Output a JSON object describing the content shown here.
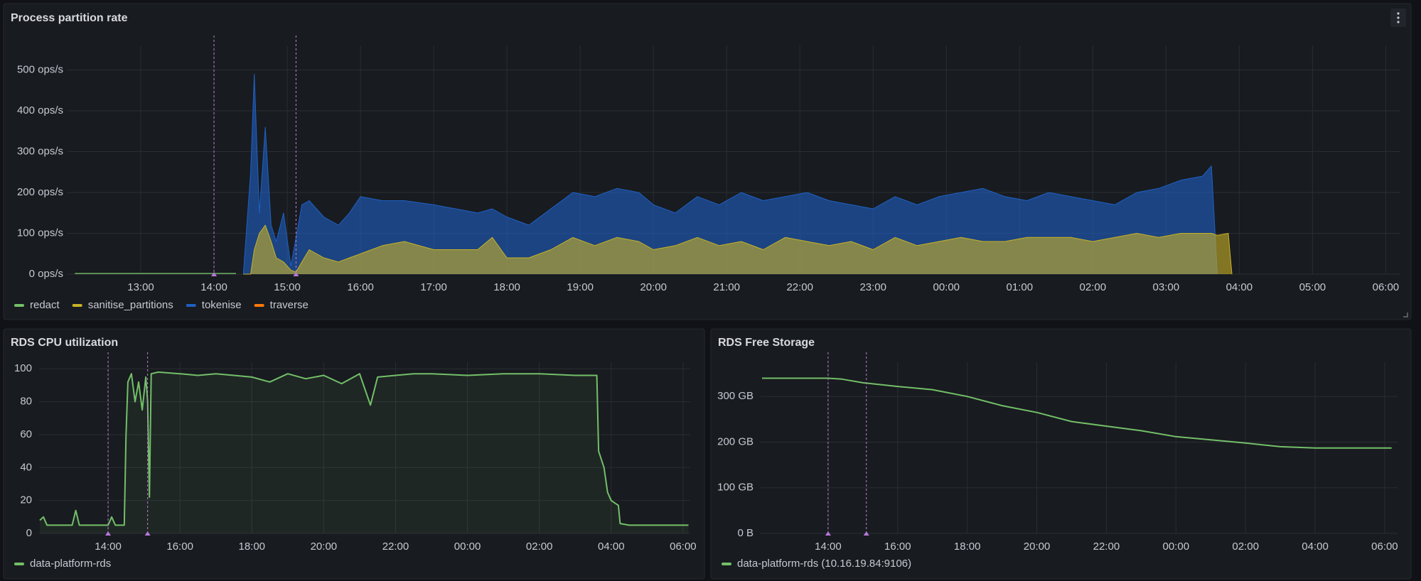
{
  "chart_data": [
    {
      "type": "area",
      "title": "Process partition rate",
      "fill": true,
      "x": [
        12.1,
        13.0,
        13.2,
        14.3,
        14.4,
        14.5,
        14.55,
        14.62,
        14.7,
        14.78,
        14.85,
        14.95,
        15.05,
        15.12,
        15.2,
        15.3,
        15.5,
        15.7,
        15.85,
        16.0,
        16.3,
        16.6,
        17.0,
        17.3,
        17.6,
        17.8,
        18.0,
        18.3,
        18.6,
        18.9,
        19.2,
        19.5,
        19.8,
        20.0,
        20.3,
        20.6,
        20.9,
        21.2,
        21.5,
        21.8,
        22.1,
        22.4,
        22.7,
        23.0,
        23.3,
        23.6,
        23.9,
        24.2,
        24.5,
        24.8,
        25.1,
        25.4,
        25.7,
        26.0,
        26.3,
        26.6,
        26.9,
        27.2,
        27.5,
        27.62,
        27.7,
        27.85,
        27.9
      ],
      "series": [
        {
          "name": "redact",
          "color": "#73bf69",
          "values": [
            2,
            2,
            2,
            2,
            null,
            null,
            null,
            null,
            null,
            null,
            null,
            null,
            null,
            null,
            null,
            null,
            null,
            null,
            null,
            null,
            null,
            null,
            null,
            null,
            null,
            null,
            null,
            null,
            null,
            null,
            null,
            null,
            null,
            null,
            null,
            null,
            null,
            null,
            null,
            null,
            null,
            null,
            null,
            null,
            null,
            null,
            null,
            null,
            null,
            null,
            null,
            null,
            null,
            null,
            null,
            null,
            null,
            null,
            null,
            null,
            null,
            null,
            null
          ]
        },
        {
          "name": "sanitise_partitions",
          "color": "#c9b227",
          "values": [
            null,
            null,
            null,
            null,
            0,
            0,
            60,
            100,
            120,
            80,
            40,
            30,
            10,
            5,
            30,
            60,
            40,
            30,
            40,
            50,
            70,
            80,
            60,
            60,
            60,
            90,
            40,
            40,
            60,
            90,
            70,
            90,
            80,
            60,
            70,
            90,
            70,
            80,
            60,
            90,
            80,
            70,
            80,
            60,
            90,
            70,
            80,
            90,
            80,
            80,
            90,
            90,
            90,
            80,
            90,
            100,
            90,
            100,
            100,
            100,
            95,
            100,
            0
          ]
        },
        {
          "name": "tokenise",
          "color": "#1f60c4",
          "values": [
            null,
            null,
            null,
            null,
            0,
            250,
            490,
            150,
            360,
            120,
            80,
            150,
            20,
            90,
            170,
            180,
            140,
            120,
            150,
            190,
            180,
            180,
            170,
            160,
            150,
            160,
            140,
            120,
            160,
            200,
            190,
            210,
            200,
            170,
            150,
            190,
            170,
            200,
            180,
            190,
            200,
            180,
            170,
            160,
            190,
            170,
            190,
            200,
            210,
            190,
            180,
            200,
            190,
            180,
            170,
            200,
            210,
            230,
            240,
            265,
            0,
            null,
            null
          ]
        },
        {
          "name": "traverse",
          "color": "#ff780a",
          "values": [
            null,
            null,
            null,
            null,
            0,
            null,
            null,
            null,
            null,
            null,
            null,
            null,
            null,
            null,
            null,
            null,
            null,
            null,
            null,
            null,
            null,
            null,
            null,
            null,
            null,
            null,
            null,
            null,
            null,
            null,
            null,
            null,
            null,
            null,
            null,
            null,
            null,
            null,
            null,
            null,
            null,
            null,
            null,
            null,
            null,
            null,
            null,
            null,
            null,
            null,
            null,
            null,
            null,
            null,
            null,
            null,
            null,
            null,
            null,
            null,
            null,
            null,
            null
          ]
        }
      ],
      "xlim": [
        12.0,
        30.2
      ],
      "xticks": [
        {
          "value": 13,
          "label": "13:00"
        },
        {
          "value": 14,
          "label": "14:00"
        },
        {
          "value": 15,
          "label": "15:00"
        },
        {
          "value": 16,
          "label": "16:00"
        },
        {
          "value": 17,
          "label": "17:00"
        },
        {
          "value": 18,
          "label": "18:00"
        },
        {
          "value": 19,
          "label": "19:00"
        },
        {
          "value": 20,
          "label": "20:00"
        },
        {
          "value": 21,
          "label": "21:00"
        },
        {
          "value": 22,
          "label": "22:00"
        },
        {
          "value": 23,
          "label": "23:00"
        },
        {
          "value": 24,
          "label": "00:00"
        },
        {
          "value": 25,
          "label": "01:00"
        },
        {
          "value": 26,
          "label": "02:00"
        },
        {
          "value": 27,
          "label": "03:00"
        },
        {
          "value": 28,
          "label": "04:00"
        },
        {
          "value": 29,
          "label": "05:00"
        },
        {
          "value": 30,
          "label": "06:00"
        }
      ],
      "ylim": [
        0,
        560
      ],
      "yticks": [
        {
          "value": 0,
          "label": "0 ops/s"
        },
        {
          "value": 100,
          "label": "100 ops/s"
        },
        {
          "value": 200,
          "label": "200 ops/s"
        },
        {
          "value": 300,
          "label": "300 ops/s"
        },
        {
          "value": 400,
          "label": "400 ops/s"
        },
        {
          "value": 500,
          "label": "500 ops/s"
        }
      ],
      "annotations": [
        14.0,
        15.12
      ]
    },
    {
      "type": "line",
      "title": "RDS CPU utilization",
      "fill": true,
      "x": [
        12.1,
        12.2,
        12.3,
        12.6,
        13.0,
        13.1,
        13.2,
        13.6,
        14.0,
        14.1,
        14.2,
        14.45,
        14.5,
        14.55,
        14.65,
        14.75,
        14.85,
        14.95,
        15.05,
        15.1,
        15.15,
        15.2,
        15.4,
        16.0,
        16.5,
        17.0,
        17.5,
        18.0,
        18.5,
        19.0,
        19.5,
        20.0,
        20.5,
        21.0,
        21.3,
        21.5,
        22.0,
        22.5,
        23.0,
        24.0,
        25.0,
        26.0,
        27.0,
        27.6,
        27.65,
        27.8,
        27.9,
        28.0,
        28.2,
        28.25,
        28.5,
        29.0,
        30.0,
        30.15
      ],
      "series": [
        {
          "name": "data-platform-rds",
          "color": "#73bf69",
          "values": [
            8,
            10,
            5,
            5,
            5,
            14,
            5,
            5,
            5,
            10,
            5,
            5,
            60,
            92,
            97,
            80,
            92,
            75,
            95,
            80,
            22,
            97,
            98,
            97,
            96,
            97,
            96,
            95,
            92,
            97,
            94,
            96,
            91,
            97,
            78,
            95,
            96,
            97,
            97,
            96,
            97,
            97,
            96,
            96,
            50,
            40,
            25,
            20,
            17,
            6,
            5,
            5,
            5,
            5
          ]
        }
      ],
      "xlim": [
        12.08,
        30.2
      ],
      "xticks": [
        {
          "value": 14,
          "label": "14:00"
        },
        {
          "value": 16,
          "label": "16:00"
        },
        {
          "value": 18,
          "label": "18:00"
        },
        {
          "value": 20,
          "label": "20:00"
        },
        {
          "value": 22,
          "label": "22:00"
        },
        {
          "value": 24,
          "label": "00:00"
        },
        {
          "value": 26,
          "label": "02:00"
        },
        {
          "value": 28,
          "label": "04:00"
        },
        {
          "value": 30,
          "label": "06:00"
        }
      ],
      "ylim": [
        0,
        104
      ],
      "yticks": [
        0,
        20,
        40,
        60,
        80,
        100
      ],
      "annotations": [
        14.0,
        15.1
      ]
    },
    {
      "type": "line",
      "title": "RDS Free Storage",
      "fill": false,
      "x": [
        12.1,
        13.0,
        14.0,
        14.4,
        15.0,
        16.0,
        17.0,
        18.0,
        19.0,
        20.0,
        21.0,
        22.0,
        23.0,
        24.0,
        25.0,
        26.0,
        27.0,
        28.0,
        29.0,
        30.2
      ],
      "series": [
        {
          "name": "data-platform-rds (10.16.19.84:9106)",
          "color": "#73bf69",
          "values": [
            340,
            340,
            340,
            338,
            330,
            322,
            315,
            300,
            280,
            265,
            245,
            235,
            225,
            212,
            205,
            198,
            190,
            187,
            187,
            187
          ]
        }
      ],
      "xlim": [
        12.06,
        30.37
      ],
      "xticks": [
        {
          "value": 14,
          "label": "14:00"
        },
        {
          "value": 16,
          "label": "16:00"
        },
        {
          "value": 18,
          "label": "18:00"
        },
        {
          "value": 20,
          "label": "20:00"
        },
        {
          "value": 22,
          "label": "22:00"
        },
        {
          "value": 24,
          "label": "00:00"
        },
        {
          "value": 26,
          "label": "02:00"
        },
        {
          "value": 28,
          "label": "04:00"
        },
        {
          "value": 30,
          "label": "06:00"
        }
      ],
      "ylim": [
        0,
        375
      ],
      "yticks": [
        {
          "value": 0,
          "label": "0 B"
        },
        {
          "value": 100,
          "label": "100 GB"
        },
        {
          "value": 200,
          "label": "200 GB"
        },
        {
          "value": 300,
          "label": "300 GB"
        }
      ],
      "annotations": [
        14.0,
        15.1
      ]
    }
  ]
}
